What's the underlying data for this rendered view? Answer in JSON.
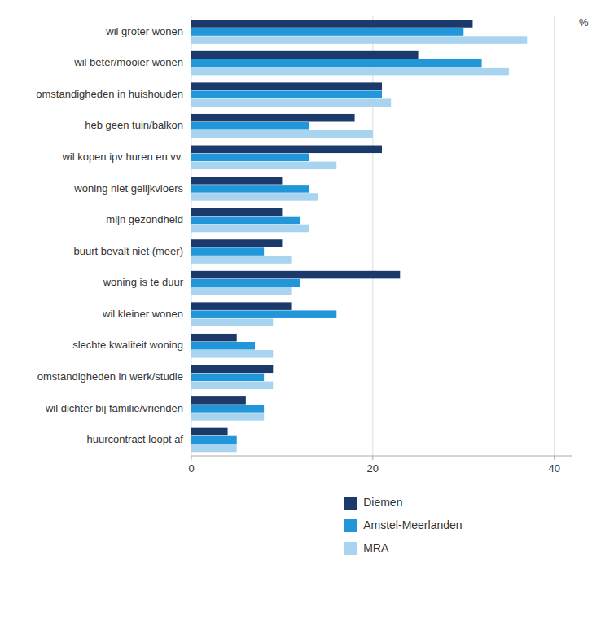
{
  "chart_data": {
    "type": "bar",
    "orientation": "horizontal",
    "categories": [
      "wil groter wonen",
      "wil beter/mooier wonen",
      "omstandigheden in huishouden",
      "heb geen tuin/balkon",
      "wil kopen ipv huren en vv.",
      "woning niet gelijkvloers",
      "mijn gezondheid",
      "buurt bevalt niet (meer)",
      "woning is te duur",
      "wil kleiner wonen",
      "slechte kwaliteit woning",
      "omstandigheden in werk/studie",
      "wil dichter bij familie/vrienden",
      "huurcontract loopt af"
    ],
    "series": [
      {
        "name": "Diemen",
        "color": "#1b3a6b",
        "values": [
          31,
          25,
          21,
          18,
          21,
          10,
          10,
          10,
          23,
          11,
          5,
          9,
          6,
          4
        ]
      },
      {
        "name": "Amstel-Meerlanden",
        "color": "#2196d9",
        "values": [
          30,
          32,
          21,
          13,
          13,
          13,
          12,
          8,
          12,
          16,
          7,
          8,
          8,
          5
        ]
      },
      {
        "name": "MRA",
        "color": "#a8d4f0",
        "values": [
          37,
          35,
          22,
          20,
          16,
          14,
          13,
          11,
          11,
          9,
          9,
          9,
          8,
          5
        ]
      }
    ],
    "x_label": "%",
    "xlim": [
      0,
      42
    ],
    "xticks": [
      0,
      20,
      40
    ],
    "grid": true,
    "legend": "bottom"
  }
}
